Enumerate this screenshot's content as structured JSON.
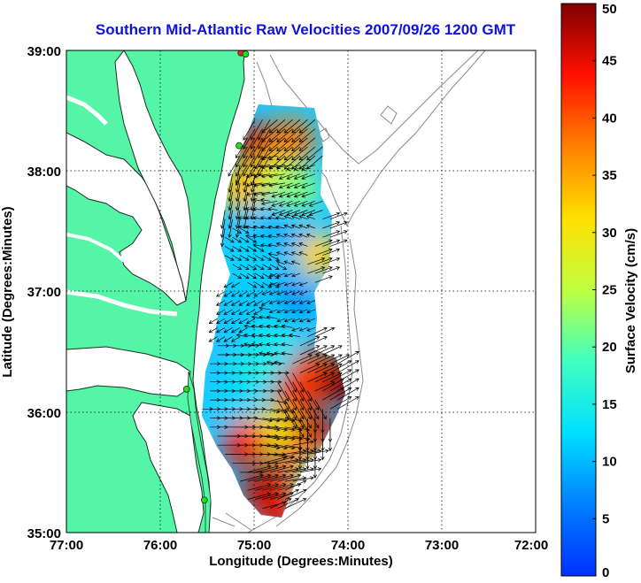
{
  "title": "Southern Mid-Atlantic Raw Velocities 2007/09/26 1200 GMT",
  "axes": {
    "x_label": "Longitude (Degrees:Minutes)",
    "y_label": "Latitude (Degrees:Minutes)",
    "x_ticks": [
      "77:00",
      "76:00",
      "75:00",
      "74:00",
      "73:00",
      "72:00"
    ],
    "x_tick_values": [
      -77,
      -76,
      -75,
      -74,
      -73,
      -72
    ],
    "y_ticks": [
      "39:00",
      "38:00",
      "37:00",
      "36:00",
      "35:00"
    ],
    "y_tick_values": [
      39,
      38,
      37,
      36,
      35
    ],
    "lon_range": [
      -77,
      -72
    ],
    "lat_range": [
      35,
      39
    ],
    "grid": "dotted"
  },
  "colorbar": {
    "label": "Surface Velocity (cm/s)",
    "ticks": [
      "50",
      "45",
      "40",
      "35",
      "30",
      "25",
      "20",
      "15",
      "10",
      "5",
      "0"
    ],
    "tick_values": [
      50,
      45,
      40,
      35,
      30,
      25,
      20,
      15,
      10,
      5,
      0
    ],
    "range": [
      0,
      50
    ],
    "colormap": "jet"
  },
  "colors": {
    "title": "#1010e0",
    "land": "#55f5a8",
    "coast": "#1a3020",
    "bathymetry": "#8a8a8a",
    "station": "#22dd22",
    "station_red": "#ee2222",
    "arrows": "#000000"
  },
  "stations": [
    {
      "lon": -75.14,
      "lat": 38.98,
      "color": "red"
    },
    {
      "lon": -75.09,
      "lat": 38.97,
      "color": "green"
    },
    {
      "lon": -75.16,
      "lat": 38.21,
      "color": "green"
    },
    {
      "lon": -75.72,
      "lat": 36.19,
      "color": "green"
    },
    {
      "lon": -75.53,
      "lat": 35.27,
      "color": "green"
    }
  ],
  "chart_data": {
    "type": "heatmap",
    "title": "Southern Mid-Atlantic Raw Velocities 2007/09/26 1200 GMT",
    "xlabel": "Longitude (Degrees:Minutes)",
    "ylabel": "Latitude (Degrees:Minutes)",
    "xlim": [
      -77,
      -72
    ],
    "ylim": [
      35,
      39
    ],
    "value_label": "Surface Velocity (cm/s)",
    "value_range": [
      0,
      50
    ],
    "speed_field": [
      {
        "lon": -74.95,
        "lat": 38.2,
        "speed": 45,
        "dir": -120
      },
      {
        "lon": -74.6,
        "lat": 38.25,
        "speed": 38,
        "dir": -140
      },
      {
        "lon": -74.75,
        "lat": 37.95,
        "speed": 27,
        "dir": -170
      },
      {
        "lon": -75.15,
        "lat": 37.85,
        "speed": 33,
        "dir": -100
      },
      {
        "lon": -74.55,
        "lat": 37.85,
        "speed": 22,
        "dir": -160
      },
      {
        "lon": -74.85,
        "lat": 37.55,
        "speed": 10,
        "dir": 170
      },
      {
        "lon": -74.5,
        "lat": 37.4,
        "speed": 9,
        "dir": 160
      },
      {
        "lon": -74.3,
        "lat": 37.3,
        "speed": 32,
        "dir": 20
      },
      {
        "lon": -75.05,
        "lat": 37.25,
        "speed": 12,
        "dir": -30
      },
      {
        "lon": -74.55,
        "lat": 36.95,
        "speed": 8,
        "dir": 200
      },
      {
        "lon": -75.1,
        "lat": 36.9,
        "speed": 11,
        "dir": 210
      },
      {
        "lon": -74.8,
        "lat": 36.6,
        "speed": 14,
        "dir": 170
      },
      {
        "lon": -75.0,
        "lat": 36.35,
        "speed": 15,
        "dir": 0
      },
      {
        "lon": -74.35,
        "lat": 36.35,
        "speed": 40,
        "dir": 25
      },
      {
        "lon": -74.1,
        "lat": 36.25,
        "speed": 48,
        "dir": 30
      },
      {
        "lon": -74.55,
        "lat": 36.15,
        "speed": 42,
        "dir": -60
      },
      {
        "lon": -75.2,
        "lat": 36.1,
        "speed": 12,
        "dir": 0
      },
      {
        "lon": -74.35,
        "lat": 35.8,
        "speed": 46,
        "dir": -90
      },
      {
        "lon": -74.8,
        "lat": 35.85,
        "speed": 30,
        "dir": -10
      },
      {
        "lon": -75.1,
        "lat": 35.75,
        "speed": 44,
        "dir": 0
      },
      {
        "lon": -74.55,
        "lat": 35.55,
        "speed": 40,
        "dir": 10
      },
      {
        "lon": -74.9,
        "lat": 35.35,
        "speed": 47,
        "dir": 15
      },
      {
        "lon": -74.75,
        "lat": 35.2,
        "speed": 45,
        "dir": 25
      },
      {
        "lon": -74.3,
        "lat": 35.45,
        "speed": 20,
        "dir": 30
      }
    ]
  }
}
